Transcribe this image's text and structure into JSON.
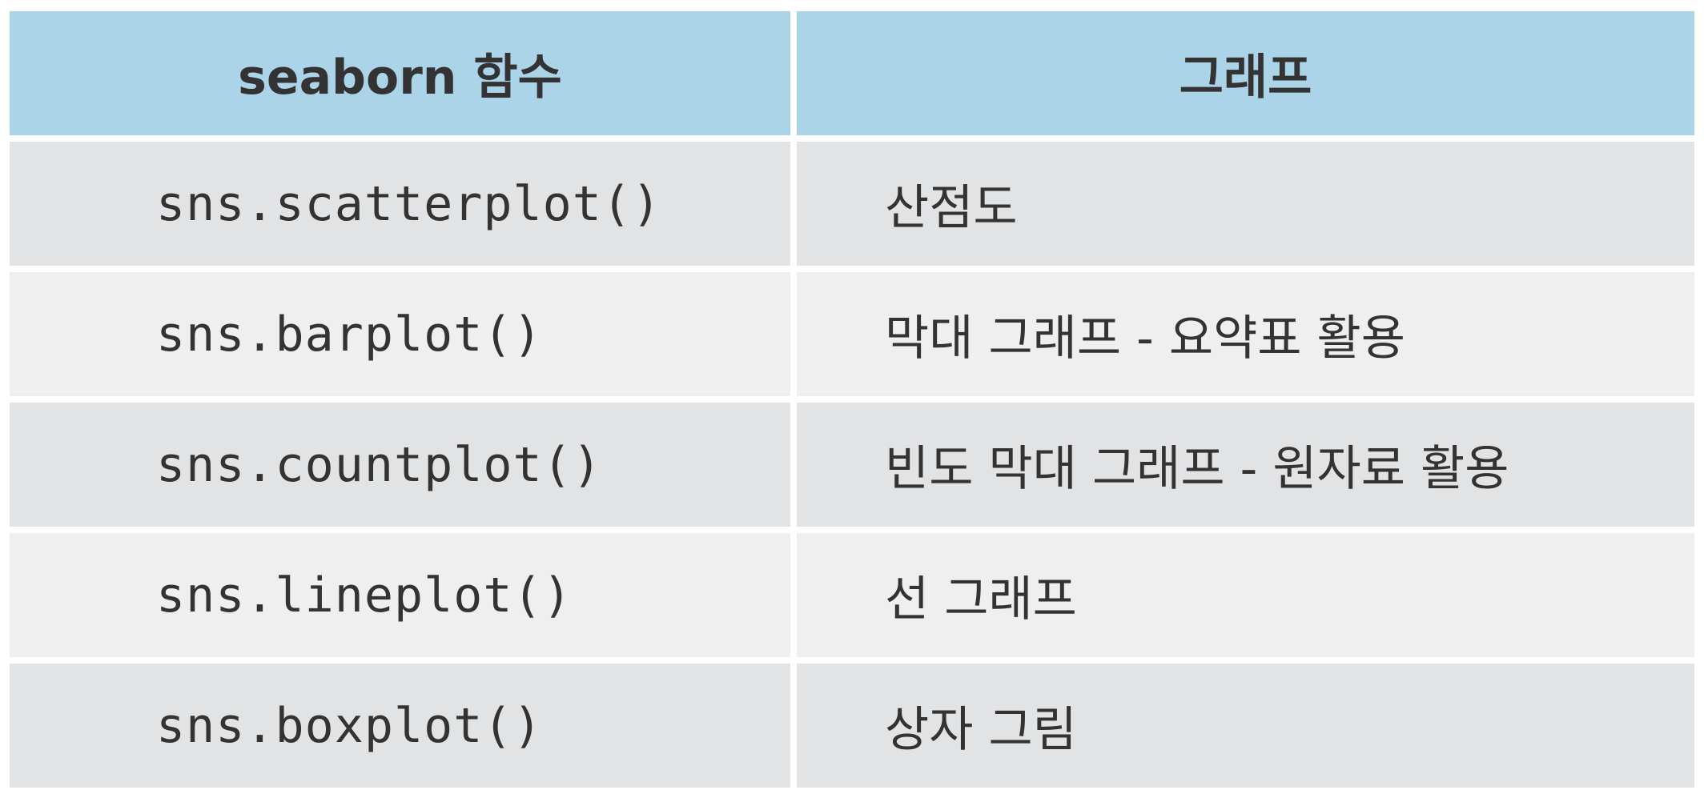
{
  "table": {
    "headers": [
      "seaborn 함수",
      "그래프"
    ],
    "rows": [
      {
        "function": "sns.scatterplot()",
        "graph": "산점도"
      },
      {
        "function": "sns.barplot()",
        "graph": "막대 그래프 - 요약표 활용"
      },
      {
        "function": "sns.countplot()",
        "graph": "빈도 막대 그래프 - 원자료 활용"
      },
      {
        "function": "sns.lineplot()",
        "graph": "선 그래프"
      },
      {
        "function": "sns.boxplot()",
        "graph": "상자 그림"
      }
    ]
  },
  "colors": {
    "header_bg": "#acd4e8",
    "row_dark_bg": "#e2e3e5",
    "row_light_bg": "#efefef",
    "text": "#333333"
  }
}
